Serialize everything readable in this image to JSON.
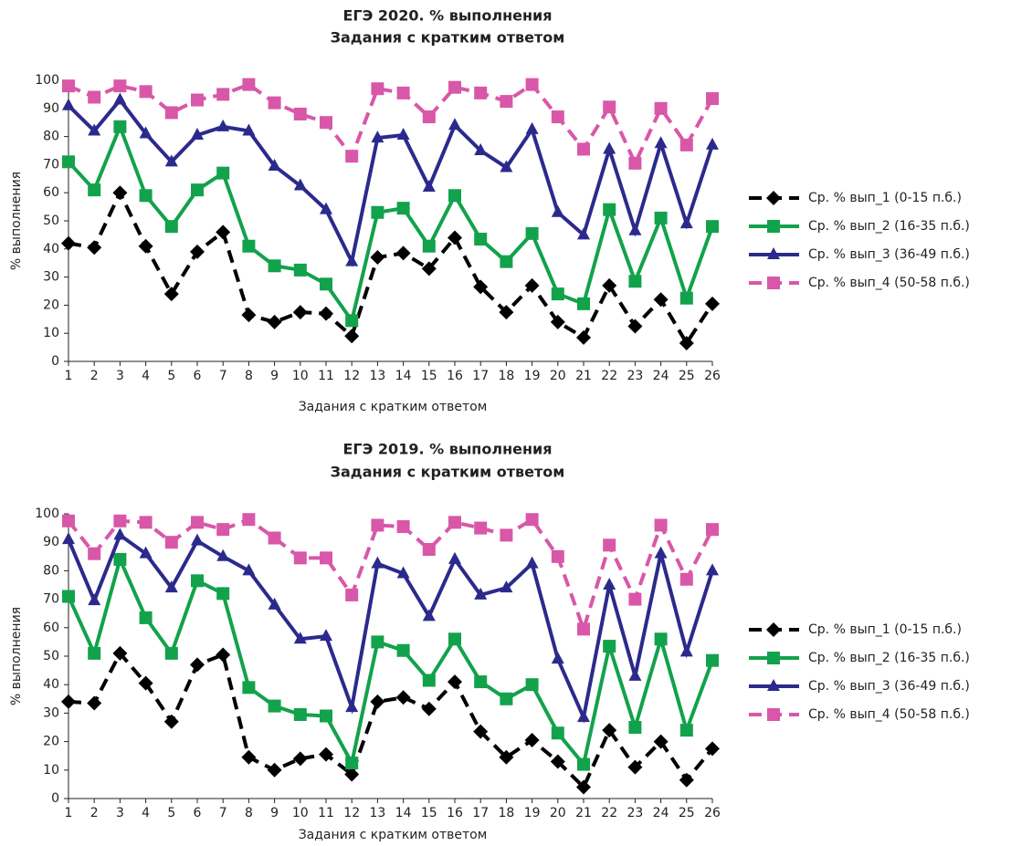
{
  "chart_data": [
    {
      "type": "line",
      "title": "ЕГЭ 2020. % выполнения",
      "subtitle": "Задания с кратким ответом",
      "x_label": "Задания с кратким ответом",
      "y_label": "% выполнения",
      "categories": [
        "1",
        "2",
        "3",
        "4",
        "5",
        "6",
        "7",
        "8",
        "9",
        "10",
        "11",
        "12",
        "13",
        "14",
        "15",
        "16",
        "17",
        "18",
        "19",
        "20",
        "21",
        "22",
        "23",
        "24",
        "25",
        "26"
      ],
      "ylim": [
        0,
        100
      ],
      "yticks": [
        0,
        10,
        20,
        30,
        40,
        50,
        60,
        70,
        80,
        90,
        100
      ],
      "grid": false,
      "legend": "right",
      "series": [
        {
          "name": "Ср. % вып_1 (0-15 п.б.)",
          "color": "#000000",
          "line_style": "dashed",
          "marker": "diamond",
          "values": [
            42,
            40.5,
            60,
            41,
            24,
            39,
            46,
            16.5,
            14,
            17.5,
            17,
            9,
            37,
            38.5,
            33,
            44,
            26.5,
            17.5,
            27,
            14,
            8.5,
            27,
            12.5,
            22,
            6.5,
            20.5
          ]
        },
        {
          "name": "Ср. % вып_2 (16-35 п.б.)",
          "color": "#12a24b",
          "line_style": "solid",
          "marker": "square",
          "values": [
            71,
            61,
            83.5,
            59,
            48,
            61,
            67,
            41,
            34,
            32.5,
            27.5,
            14.5,
            53,
            54.5,
            41,
            59,
            43.5,
            35.5,
            45.5,
            24,
            20.5,
            54,
            28.5,
            51,
            22.5,
            48
          ]
        },
        {
          "name": "Ср. % вып_3 (36-49 п.б.)",
          "color": "#2b2a8c",
          "line_style": "solid",
          "marker": "triangle",
          "values": [
            91,
            82,
            93,
            81,
            71,
            80.5,
            83.5,
            82,
            69.5,
            62.5,
            54,
            35.5,
            79.5,
            80.5,
            62,
            84,
            75,
            69,
            82.5,
            53,
            45,
            75.5,
            46.5,
            77.5,
            49,
            77
          ]
        },
        {
          "name": "Ср. % вып_4 (50-58 п.б.)",
          "color": "#d957a8",
          "line_style": "dashed",
          "marker": "square",
          "values": [
            98,
            94,
            98,
            96,
            88.5,
            93,
            95,
            98.5,
            92,
            88,
            85,
            73,
            97,
            95.5,
            87,
            97.5,
            95.5,
            92.5,
            98.5,
            87,
            75.5,
            90.5,
            70.5,
            90,
            77,
            93.5
          ]
        }
      ]
    },
    {
      "type": "line",
      "title": "ЕГЭ 2019. % выполнения",
      "subtitle": "Задания с кратким ответом",
      "x_label": "Задания с кратким ответом",
      "y_label": "% выполнения",
      "categories": [
        "1",
        "2",
        "3",
        "4",
        "5",
        "6",
        "7",
        "8",
        "9",
        "10",
        "11",
        "12",
        "13",
        "14",
        "15",
        "16",
        "17",
        "18",
        "19",
        "20",
        "21",
        "22",
        "23",
        "24",
        "25",
        "26"
      ],
      "ylim": [
        0,
        100
      ],
      "yticks": [
        0,
        10,
        20,
        30,
        40,
        50,
        60,
        70,
        80,
        90,
        100
      ],
      "grid": false,
      "legend": "right",
      "series": [
        {
          "name": "Ср. % вып_1 (0-15 п.б.)",
          "color": "#000000",
          "line_style": "dashed",
          "marker": "diamond",
          "values": [
            34,
            33.5,
            51,
            40.5,
            27,
            47,
            50.5,
            14.5,
            10,
            14,
            15.5,
            8.5,
            34,
            35.5,
            31.5,
            41,
            23.5,
            14.5,
            20.5,
            13,
            4,
            24,
            11,
            20,
            6.5,
            17.5
          ]
        },
        {
          "name": "Ср. % вып_2 (16-35 п.б.)",
          "color": "#12a24b",
          "line_style": "solid",
          "marker": "square",
          "values": [
            71,
            51,
            84,
            63.5,
            51,
            76.5,
            72,
            39,
            32.5,
            29.5,
            29,
            12.5,
            55,
            52,
            41.5,
            56,
            41,
            35,
            40,
            23,
            12,
            53.5,
            25,
            56,
            24,
            48.5
          ]
        },
        {
          "name": "Ср. % вып_3 (36-49 п.б.)",
          "color": "#2b2a8c",
          "line_style": "solid",
          "marker": "triangle",
          "values": [
            91,
            69.5,
            92.5,
            86,
            74,
            90.5,
            85,
            80,
            68,
            56,
            57,
            32,
            82.5,
            79,
            64,
            84,
            71.5,
            74,
            82.5,
            49,
            28.5,
            75,
            43,
            86,
            51.5,
            80
          ]
        },
        {
          "name": "Ср. % вып_4 (50-58 п.б.)",
          "color": "#d957a8",
          "line_style": "dashed",
          "marker": "square",
          "values": [
            97.5,
            86,
            97.5,
            97,
            90,
            97,
            94.5,
            98,
            91.5,
            84.5,
            84.5,
            71.5,
            96,
            95.5,
            87.5,
            97,
            95,
            92.5,
            98,
            85,
            59.5,
            89,
            70,
            96,
            77,
            94.5
          ]
        }
      ]
    }
  ]
}
